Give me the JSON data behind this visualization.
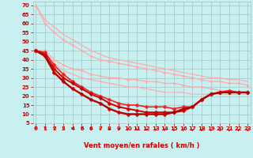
{
  "xlabel": "Vent moyen/en rafales ( km/h )",
  "background_color": "#c8f0f0",
  "grid_color": "#a8cccc",
  "x_ticks": [
    0,
    1,
    2,
    3,
    4,
    5,
    6,
    7,
    8,
    9,
    10,
    11,
    12,
    13,
    14,
    15,
    16,
    17,
    18,
    19,
    20,
    21,
    22,
    23
  ],
  "y_ticks": [
    5,
    10,
    15,
    20,
    25,
    30,
    35,
    40,
    45,
    50,
    55,
    60,
    65,
    70
  ],
  "xlim": [
    -0.3,
    23.3
  ],
  "ylim": [
    5,
    72
  ],
  "series": [
    {
      "x": [
        0,
        1,
        2,
        3,
        4,
        5,
        6,
        7,
        8,
        9,
        10,
        11,
        12,
        13,
        14,
        15,
        16,
        17,
        18,
        19,
        20,
        21,
        22,
        23
      ],
      "y": [
        70,
        62,
        58,
        54,
        51,
        48,
        45,
        43,
        41,
        40,
        39,
        38,
        37,
        36,
        35,
        34,
        33,
        32,
        31,
        30,
        30,
        29,
        29,
        28
      ],
      "color": "#ffaaaa",
      "lw": 0.9,
      "marker": null
    },
    {
      "x": [
        0,
        1,
        2,
        3,
        4,
        5,
        6,
        7,
        8,
        9,
        10,
        11,
        12,
        13,
        14,
        15,
        16,
        17,
        18,
        19,
        20,
        21,
        22,
        23
      ],
      "y": [
        70,
        60,
        55,
        51,
        48,
        45,
        42,
        40,
        39,
        38,
        37,
        36,
        35,
        34,
        33,
        32,
        31,
        30,
        29,
        28,
        28,
        27,
        27,
        26
      ],
      "color": "#ffaaaa",
      "lw": 0.9,
      "marker": "D",
      "ms": 1.8
    },
    {
      "x": [
        0,
        1,
        2,
        3,
        4,
        5,
        6,
        7,
        8,
        9,
        10,
        11,
        12,
        13,
        14,
        15,
        16,
        17,
        18,
        19,
        20,
        21,
        22,
        23
      ],
      "y": [
        45,
        45,
        40,
        37,
        35,
        34,
        32,
        31,
        30,
        30,
        29,
        29,
        28,
        28,
        27,
        27,
        26,
        25,
        25,
        24,
        23,
        23,
        22,
        22
      ],
      "color": "#ffaaaa",
      "lw": 0.9,
      "marker": "D",
      "ms": 1.8
    },
    {
      "x": [
        0,
        1,
        2,
        3,
        4,
        5,
        6,
        7,
        8,
        9,
        10,
        11,
        12,
        13,
        14,
        15,
        16,
        17,
        18,
        19,
        20,
        21,
        22,
        23
      ],
      "y": [
        45,
        44,
        38,
        34,
        32,
        30,
        29,
        28,
        27,
        26,
        25,
        25,
        24,
        23,
        22,
        22,
        22,
        21,
        21,
        21,
        21,
        21,
        21,
        21
      ],
      "color": "#ffaaaa",
      "lw": 0.9,
      "marker": null
    },
    {
      "x": [
        0,
        1,
        2,
        3,
        4,
        5,
        6,
        7,
        8,
        9,
        10,
        11,
        12,
        13,
        14,
        15,
        16,
        17,
        18,
        19,
        20,
        21,
        22,
        23
      ],
      "y": [
        45,
        44,
        37,
        32,
        28,
        25,
        22,
        20,
        18,
        16,
        15,
        15,
        14,
        14,
        14,
        13,
        14,
        14,
        18,
        21,
        22,
        23,
        22,
        22
      ],
      "color": "#ee2222",
      "lw": 1.2,
      "marker": "D",
      "ms": 2.5
    },
    {
      "x": [
        0,
        1,
        2,
        3,
        4,
        5,
        6,
        7,
        8,
        9,
        10,
        11,
        12,
        13,
        14,
        15,
        16,
        17,
        18,
        19,
        20,
        21,
        22,
        23
      ],
      "y": [
        45,
        43,
        35,
        30,
        27,
        24,
        21,
        19,
        16,
        14,
        13,
        12,
        11,
        11,
        11,
        11,
        13,
        14,
        18,
        21,
        22,
        22,
        22,
        22
      ],
      "color": "#cc0000",
      "lw": 1.4,
      "marker": "D",
      "ms": 2.5
    },
    {
      "x": [
        0,
        1,
        2,
        3,
        4,
        5,
        6,
        7,
        8,
        9,
        10,
        11,
        12,
        13,
        14,
        15,
        16,
        17,
        18,
        19,
        20,
        21,
        22,
        23
      ],
      "y": [
        45,
        42,
        33,
        28,
        24,
        21,
        18,
        16,
        13,
        11,
        10,
        10,
        10,
        10,
        10,
        11,
        12,
        14,
        18,
        21,
        22,
        22,
        22,
        22
      ],
      "color": "#bb0000",
      "lw": 1.7,
      "marker": "D",
      "ms": 2.5
    }
  ],
  "arrow_color": "#cc0000",
  "tick_color": "#cc0000",
  "xlabel_color": "#cc0000"
}
